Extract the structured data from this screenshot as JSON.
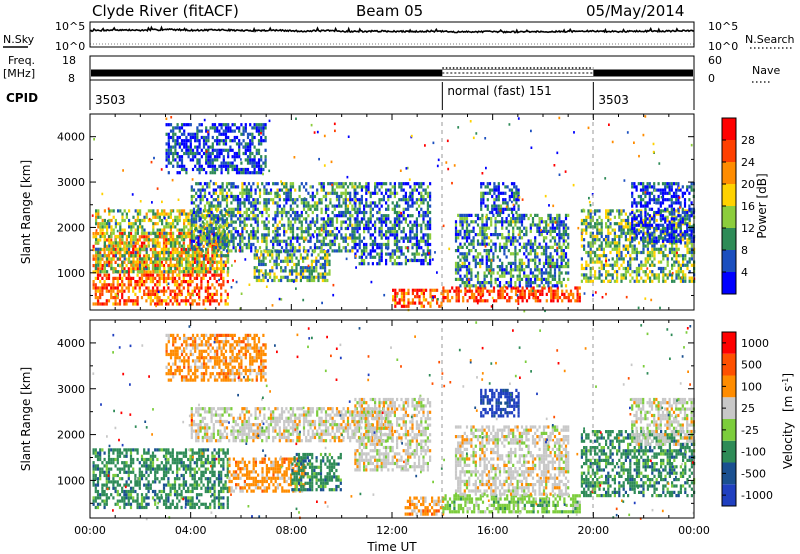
{
  "header": {
    "title": "Clyde River (fitACF)",
    "beam": "Beam 05",
    "date": "05/May/2014"
  },
  "chart_data": [
    {
      "type": "line",
      "panel": "noise",
      "left_label": "N.Sky",
      "right_label": "N.Search",
      "left_ticks": [
        "10^5",
        "10^0"
      ],
      "right_ticks": [
        "10^5",
        "10^0"
      ],
      "yscale": "log",
      "ylim": [
        1,
        100000
      ],
      "sky_level_log10": [
        3.4,
        3.6,
        3.5,
        3.7,
        3.5,
        3.6,
        3.4,
        3.5,
        3.3,
        3.4,
        3.2,
        3.3,
        3.2,
        3.3,
        3.1,
        3.2,
        3.1,
        3.2,
        3.2,
        3.3,
        3.2,
        3.3,
        3.3,
        3.4
      ]
    },
    {
      "type": "line",
      "panel": "frequency",
      "left_label": "Freq.",
      "left_unit": "[MHz]",
      "right_label": "Nave",
      "left_ticks": [
        "18",
        "8"
      ],
      "right_ticks": [
        "60",
        "0"
      ],
      "ylim": [
        8,
        18
      ],
      "freq_mhz": 10.5,
      "nave_normal_fast": 30
    },
    {
      "type": "table",
      "panel": "cpid",
      "label": "CPID",
      "segments": [
        {
          "start_h": 0,
          "end_h": 14,
          "name": "3503"
        },
        {
          "start_h": 14,
          "end_h": 20,
          "name": "normal (fast) 151"
        },
        {
          "start_h": 20,
          "end_h": 24,
          "name": "3503"
        }
      ]
    },
    {
      "type": "heatmap",
      "panel": "power",
      "ylabel": "Slant Range [km]",
      "xlabel": "",
      "yticks": [
        "1000",
        "2000",
        "3000",
        "4000"
      ],
      "xlim": [
        0,
        24
      ],
      "ylim": [
        180,
        4500
      ],
      "colorbar_label": "Power [dB]",
      "colorbar_ticks": [
        "4",
        "8",
        "12",
        "16",
        "20",
        "24",
        "28"
      ],
      "colors": [
        "#0000ff",
        "#1b4fbf",
        "#2e8b57",
        "#8ccd3c",
        "#ffd200",
        "#ff8c00",
        "#ff4000",
        "#ff0000"
      ],
      "regions": [
        {
          "t0": 0.1,
          "t1": 5.5,
          "r0": 300,
          "r1": 1900,
          "level": 0.78
        },
        {
          "t0": 0.2,
          "t1": 5.5,
          "r0": 1000,
          "r1": 2400,
          "level": 0.45
        },
        {
          "t0": 4.0,
          "t1": 10.5,
          "r0": 1500,
          "r1": 3000,
          "level": 0.3
        },
        {
          "t0": 3.0,
          "t1": 7.0,
          "r0": 3200,
          "r1": 4300,
          "level": 0.15
        },
        {
          "t0": 6.5,
          "t1": 9.5,
          "r0": 800,
          "r1": 1500,
          "level": 0.35
        },
        {
          "t0": 10.5,
          "t1": 13.5,
          "r0": 1200,
          "r1": 3000,
          "level": 0.22
        },
        {
          "t0": 12.0,
          "t1": 14.0,
          "r0": 250,
          "r1": 650,
          "level": 0.8
        },
        {
          "t0": 14.0,
          "t1": 19.5,
          "r0": 350,
          "r1": 700,
          "level": 0.85
        },
        {
          "t0": 14.5,
          "t1": 19.0,
          "r0": 700,
          "r1": 2300,
          "level": 0.28
        },
        {
          "t0": 15.5,
          "t1": 17.0,
          "r0": 2300,
          "r1": 3000,
          "level": 0.18
        },
        {
          "t0": 19.5,
          "t1": 24.0,
          "r0": 800,
          "r1": 2400,
          "level": 0.4
        },
        {
          "t0": 21.5,
          "t1": 24.0,
          "r0": 1700,
          "r1": 3000,
          "level": 0.12
        }
      ]
    },
    {
      "type": "heatmap",
      "panel": "velocity",
      "ylabel": "Slant Range [km]",
      "xlabel": "Time UT",
      "yticks": [
        "1000",
        "2000",
        "3000",
        "4000"
      ],
      "xticks": [
        "00:00",
        "04:00",
        "08:00",
        "12:00",
        "16:00",
        "20:00",
        "00:00"
      ],
      "xlim": [
        0,
        24
      ],
      "ylim": [
        180,
        4500
      ],
      "colorbar_label": "Velocity",
      "colorbar_unit_base": "[m s",
      "colorbar_unit_exp": "-1",
      "colorbar_ticks": [
        "1000",
        "500",
        "100",
        "25",
        "-25",
        "-100",
        "-500",
        "-1000"
      ],
      "colors": [
        "#2040c0",
        "#1a5090",
        "#2e8b57",
        "#7ccd3c",
        "#c8c8c8",
        "#ff8c00",
        "#ff5000",
        "#ff0000"
      ],
      "regions": [
        {
          "t0": 0.1,
          "t1": 5.5,
          "r0": 400,
          "r1": 1700,
          "cls": 2
        },
        {
          "t0": 4.0,
          "t1": 12.0,
          "r0": 1900,
          "r1": 2600,
          "cls": 4
        },
        {
          "t0": 5.5,
          "t1": 8.5,
          "r0": 800,
          "r1": 1500,
          "cls": 5
        },
        {
          "t0": 3.0,
          "t1": 7.0,
          "r0": 3200,
          "r1": 4200,
          "cls": 5
        },
        {
          "t0": 8.0,
          "t1": 10.0,
          "r0": 800,
          "r1": 1600,
          "cls": 2
        },
        {
          "t0": 10.5,
          "t1": 13.5,
          "r0": 1200,
          "r1": 2800,
          "cls": 4
        },
        {
          "t0": 12.5,
          "t1": 14.0,
          "r0": 250,
          "r1": 650,
          "cls": 5
        },
        {
          "t0": 14.0,
          "t1": 19.5,
          "r0": 350,
          "r1": 700,
          "cls": 3
        },
        {
          "t0": 14.5,
          "t1": 19.0,
          "r0": 700,
          "r1": 2200,
          "cls": 4
        },
        {
          "t0": 15.5,
          "t1": 17.0,
          "r0": 2400,
          "r1": 3000,
          "cls": 0
        },
        {
          "t0": 19.5,
          "t1": 24.0,
          "r0": 700,
          "r1": 2100,
          "cls": 2
        },
        {
          "t0": 21.5,
          "t1": 24.0,
          "r0": 1800,
          "r1": 2800,
          "cls": 4
        }
      ]
    }
  ]
}
